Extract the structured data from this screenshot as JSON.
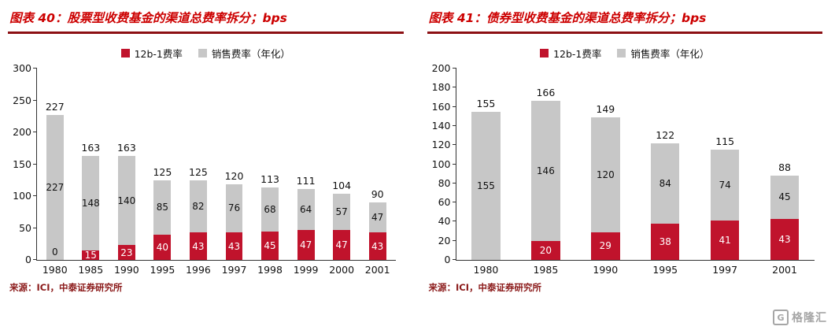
{
  "theme": {
    "accent_red": "#cc0000",
    "underline_red": "#8c1014",
    "bar_red": "#c0132c",
    "bar_gray": "#c7c7c7",
    "source_red": "#8b1a1a",
    "logo_gray": "#a6a6a6"
  },
  "logo": {
    "mark": "G",
    "text": "格隆汇"
  },
  "chart_data": [
    {
      "type": "bar",
      "stacked": true,
      "title": "图表 40：股票型收费基金的渠道总费率拆分；bps",
      "source": "来源：ICI，中泰证券研究所",
      "legend_position": "top-center",
      "grid": false,
      "ylim": [
        0,
        300
      ],
      "ytick_step": 50,
      "categories": [
        "1980",
        "1985",
        "1990",
        "1995",
        "1996",
        "1997",
        "1998",
        "1999",
        "2000",
        "2001"
      ],
      "series": [
        {
          "name": "12b-1费率",
          "color": "#c0132c",
          "values": [
            0,
            15,
            23,
            40,
            43,
            43,
            45,
            47,
            47,
            43
          ]
        },
        {
          "name": "销售费率（年化）",
          "color": "#c7c7c7",
          "values": [
            227,
            148,
            140,
            85,
            82,
            76,
            68,
            64,
            57,
            47
          ]
        }
      ],
      "bars": [
        {
          "year": "1980",
          "red": 0,
          "red_label": "0",
          "gray": 227,
          "gray_label": "227",
          "total": "227"
        },
        {
          "year": "1985",
          "red": 15,
          "red_label": "15",
          "gray": 148,
          "gray_label": "148",
          "total": "163"
        },
        {
          "year": "1990",
          "red": 23,
          "red_label": "23",
          "gray": 140,
          "gray_label": "140",
          "total": "163"
        },
        {
          "year": "1995",
          "red": 40,
          "red_label": "40",
          "gray": 85,
          "gray_label": "85",
          "total": "125"
        },
        {
          "year": "1996",
          "red": 43,
          "red_label": "43",
          "gray": 82,
          "gray_label": "82",
          "total": "125"
        },
        {
          "year": "1997",
          "red": 43,
          "red_label": "43",
          "gray": 76,
          "gray_label": "76",
          "total": "120"
        },
        {
          "year": "1998",
          "red": 45,
          "red_label": "45",
          "gray": 68,
          "gray_label": "68",
          "total": "113"
        },
        {
          "year": "1999",
          "red": 47,
          "red_label": "47",
          "gray": 64,
          "gray_label": "64",
          "total": "111"
        },
        {
          "year": "2000",
          "red": 47,
          "red_label": "47",
          "gray": 57,
          "gray_label": "57",
          "total": "104"
        },
        {
          "year": "2001",
          "red": 43,
          "red_label": "43",
          "gray": 47,
          "gray_label": "47",
          "total": "90"
        }
      ]
    },
    {
      "type": "bar",
      "stacked": true,
      "title": "图表 41：债券型收费基金的渠道总费率拆分；bps",
      "source": "来源：ICI，中泰证券研究所",
      "legend_position": "top-center",
      "grid": false,
      "ylim": [
        0,
        200
      ],
      "ytick_step": 20,
      "categories": [
        "1980",
        "1985",
        "1990",
        "1995",
        "1997",
        "2001"
      ],
      "series": [
        {
          "name": "12b-1费率",
          "color": "#c0132c",
          "values": [
            0,
            20,
            29,
            38,
            41,
            43
          ]
        },
        {
          "name": "销售费率（年化）",
          "color": "#c7c7c7",
          "values": [
            155,
            146,
            120,
            84,
            74,
            45
          ]
        }
      ],
      "bars": [
        {
          "year": "1980",
          "red": 0,
          "red_label": "",
          "gray": 155,
          "gray_label": "155",
          "total": "155"
        },
        {
          "year": "1985",
          "red": 20,
          "red_label": "20",
          "gray": 146,
          "gray_label": "146",
          "total": "166"
        },
        {
          "year": "1990",
          "red": 29,
          "red_label": "29",
          "gray": 120,
          "gray_label": "120",
          "total": "149"
        },
        {
          "year": "1995",
          "red": 38,
          "red_label": "38",
          "gray": 84,
          "gray_label": "84",
          "total": "122"
        },
        {
          "year": "1997",
          "red": 41,
          "red_label": "41",
          "gray": 74,
          "gray_label": "74",
          "total": "115"
        },
        {
          "year": "2001",
          "red": 43,
          "red_label": "43",
          "gray": 45,
          "gray_label": "45",
          "total": "88"
        }
      ]
    }
  ]
}
